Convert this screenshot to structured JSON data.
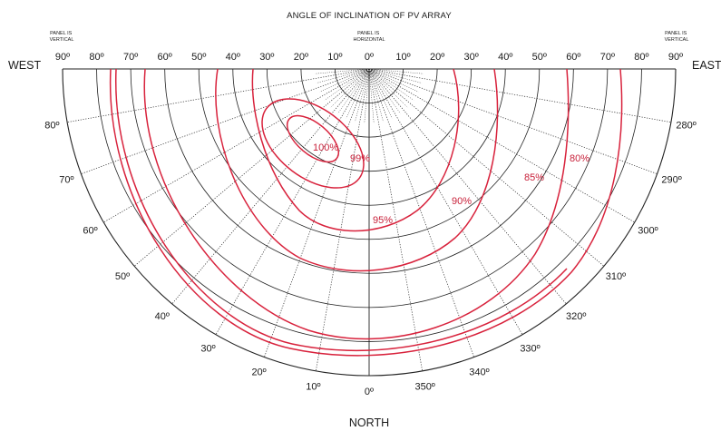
{
  "title": "ANGLE OF INCLINATION OF PV ARRAY",
  "notes": {
    "vertical_left": [
      "PANEL IS",
      "VERTICAL"
    ],
    "horizontal": [
      "PANEL IS",
      "HORIZONTAL"
    ],
    "vertical_right": [
      "PANEL IS",
      "VERTICAL"
    ]
  },
  "directions": {
    "west": "WEST",
    "east": "EAST",
    "north": "NORTH"
  },
  "tilt_labels": {
    "left": [
      "90º",
      "80º",
      "70º",
      "60º",
      "50º",
      "40º",
      "30º",
      "20º",
      "10º"
    ],
    "center": "0º",
    "right": [
      "10º",
      "20º",
      "30º",
      "40º",
      "50º",
      "60º",
      "70º",
      "80º",
      "90º"
    ]
  },
  "azimuth_labels": [
    {
      "deg": 280,
      "text": "280º"
    },
    {
      "deg": 290,
      "text": "290º"
    },
    {
      "deg": 300,
      "text": "300º"
    },
    {
      "deg": 310,
      "text": "310º"
    },
    {
      "deg": 320,
      "text": "320º"
    },
    {
      "deg": 330,
      "text": "330º"
    },
    {
      "deg": 340,
      "text": "340º"
    },
    {
      "deg": 350,
      "text": "350º"
    },
    {
      "deg": 0,
      "text": "0º"
    },
    {
      "deg": 10,
      "text": "10º"
    },
    {
      "deg": 20,
      "text": "20º"
    },
    {
      "deg": 30,
      "text": "30º"
    },
    {
      "deg": 40,
      "text": "40º"
    },
    {
      "deg": 50,
      "text": "50º"
    },
    {
      "deg": 60,
      "text": "60º"
    },
    {
      "deg": 70,
      "text": "70º"
    },
    {
      "deg": 80,
      "text": "80º"
    }
  ],
  "efficiency_labels": [
    "100%",
    "99%",
    "95%",
    "90%",
    "85%",
    "80%"
  ],
  "colors": {
    "contour": "#d8223c",
    "grid": "#222222",
    "label": "#c8213a"
  }
}
